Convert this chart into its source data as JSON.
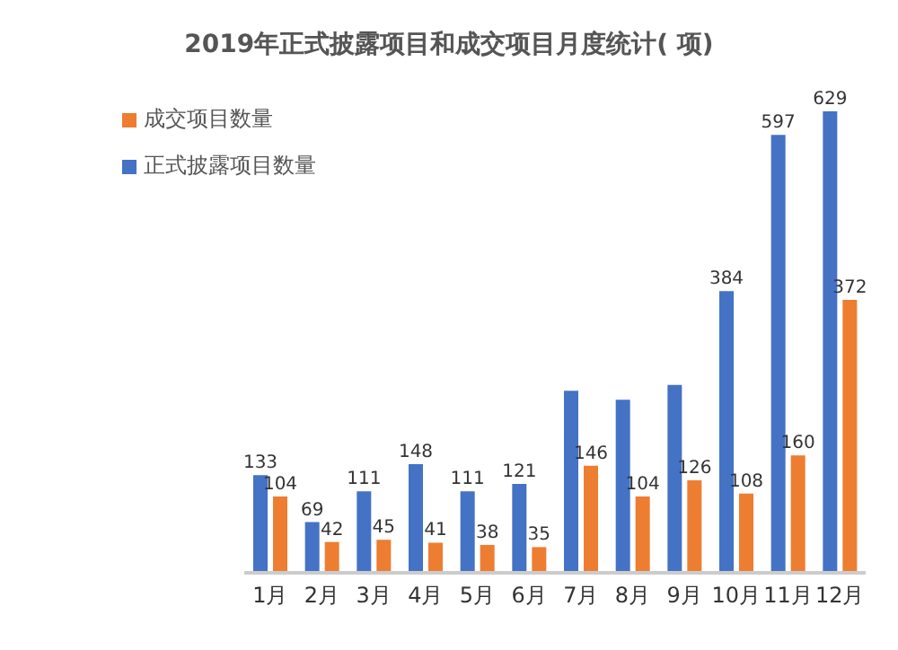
{
  "chart_data": {
    "type": "bar",
    "title": "2019年正式披露项目和成交项目月度统计( 项)",
    "categories": [
      "1月",
      "2月",
      "3月",
      "4月",
      "5月",
      "6月",
      "7月",
      "8月",
      "9月",
      "10月",
      "11月",
      "12月"
    ],
    "series": [
      {
        "name": "正式披露项目数量",
        "color": "#4472c4",
        "values": [
          133,
          69,
          111,
          148,
          111,
          121,
          248,
          236,
          256,
          384,
          597,
          629
        ],
        "value_labels": [
          "133",
          "69",
          "111",
          "148",
          "111",
          "121",
          null,
          null,
          null,
          "384",
          "597",
          "629"
        ]
      },
      {
        "name": "成交项目数量",
        "color": "#ed7d31",
        "values": [
          104,
          42,
          45,
          41,
          38,
          35,
          146,
          104,
          126,
          108,
          160,
          372
        ],
        "value_labels": [
          "104",
          "42",
          "45",
          "41",
          "38",
          "35",
          "146",
          "104",
          "126",
          "108",
          "160",
          "372"
        ]
      }
    ],
    "legend": "top left"
  }
}
